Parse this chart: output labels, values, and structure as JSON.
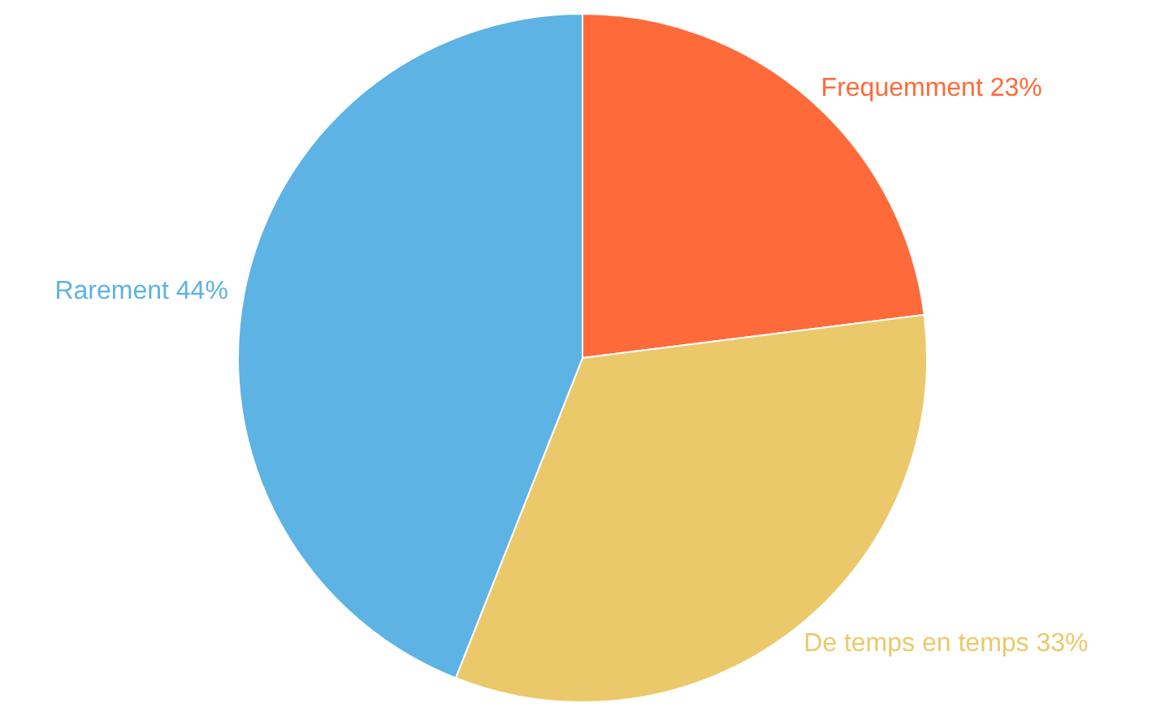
{
  "chart_data": {
    "type": "pie",
    "categories": [
      "Frequemment",
      "De temps en temps",
      "Rarement"
    ],
    "values": [
      23,
      33,
      44
    ],
    "value_labels": [
      "23%",
      "33%",
      "44%"
    ],
    "colors": [
      "#ff6a3a",
      "#ebc96a",
      "#5db3e3"
    ]
  }
}
